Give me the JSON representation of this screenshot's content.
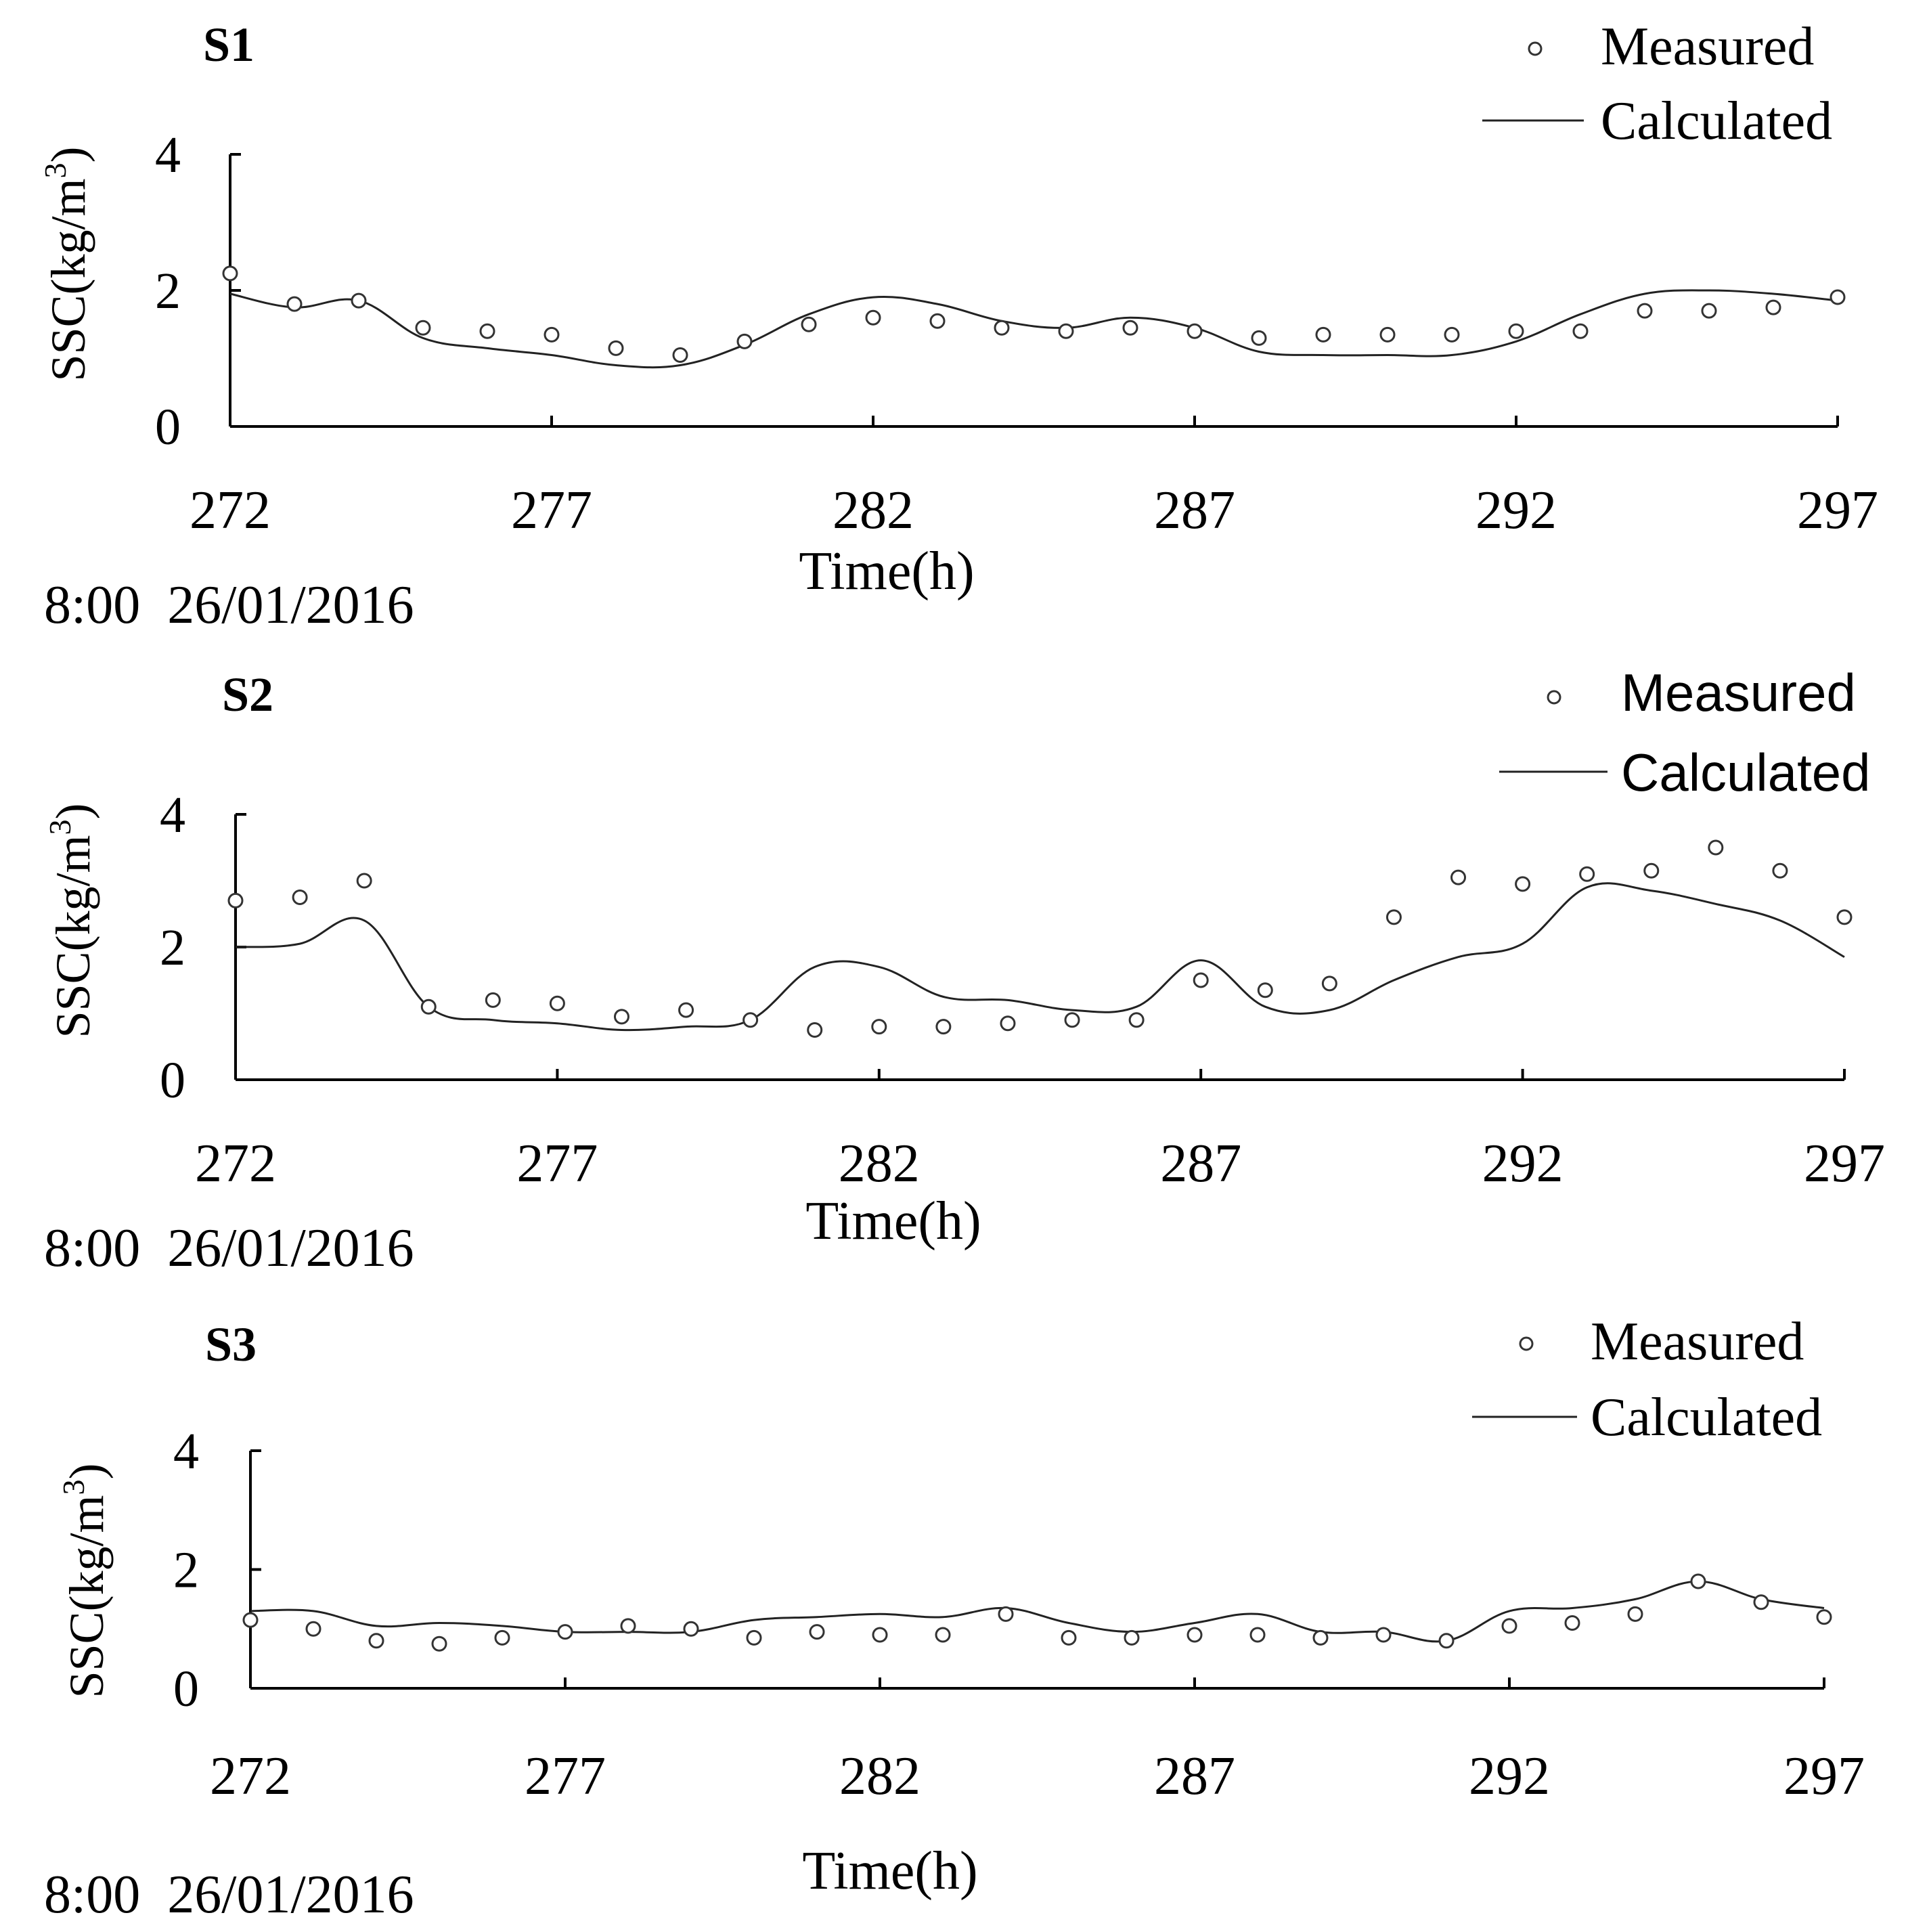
{
  "chart_data": [
    {
      "type": "line",
      "panel_label": "S1",
      "xlabel": "Time(h)",
      "ylabel": "SSC(kg/m3)",
      "ylabel_base": "SSC(kg/m",
      "ylabel_sup": "3",
      "ylabel_close": ")",
      "start_note": "8:00  26/01/2016",
      "xlim": [
        272,
        297
      ],
      "ylim": [
        0,
        4
      ],
      "xticks": [
        272,
        277,
        282,
        287,
        292,
        297
      ],
      "yticks": [
        0,
        2,
        4
      ],
      "legend": {
        "measured": "Measured",
        "calculated": "Calculated"
      },
      "series": [
        {
          "name": "Measured",
          "style": "open-circle",
          "x": [
            272,
            273,
            274,
            275,
            276,
            277,
            278,
            279,
            280,
            281,
            282,
            283,
            284,
            285,
            286,
            287,
            288,
            289,
            290,
            291,
            292,
            293,
            294,
            295,
            296,
            297
          ],
          "y": [
            2.25,
            1.8,
            1.85,
            1.45,
            1.4,
            1.35,
            1.15,
            1.05,
            1.25,
            1.5,
            1.6,
            1.55,
            1.45,
            1.4,
            1.45,
            1.4,
            1.3,
            1.35,
            1.35,
            1.35,
            1.4,
            1.4,
            1.7,
            1.7,
            1.75,
            1.9
          ]
        },
        {
          "name": "Calculated",
          "style": "line",
          "x": [
            272,
            273,
            274,
            275,
            276,
            277,
            278,
            279,
            280,
            281,
            282,
            283,
            284,
            285,
            286,
            287,
            288,
            289,
            290,
            291,
            292,
            293,
            294,
            295,
            296,
            297
          ],
          "y": [
            1.95,
            1.75,
            1.85,
            1.3,
            1.15,
            1.05,
            0.9,
            0.9,
            1.2,
            1.65,
            1.9,
            1.8,
            1.55,
            1.45,
            1.6,
            1.45,
            1.1,
            1.05,
            1.05,
            1.05,
            1.25,
            1.65,
            1.95,
            2.0,
            1.95,
            1.85
          ]
        }
      ]
    },
    {
      "type": "line",
      "panel_label": "S2",
      "xlabel": "Time(h)",
      "ylabel": "SSC(kg/m3)",
      "ylabel_base": "SSC(kg/m",
      "ylabel_sup": "3",
      "ylabel_close": ")",
      "start_note": "8:00  26/01/2016",
      "xlim": [
        272,
        297
      ],
      "ylim": [
        0,
        4
      ],
      "xticks": [
        272,
        277,
        282,
        287,
        292,
        297
      ],
      "yticks": [
        0,
        2,
        4
      ],
      "legend": {
        "measured": "Measured",
        "calculated": "Calculated"
      },
      "series": [
        {
          "name": "Measured",
          "style": "open-circle",
          "x": [
            272,
            273,
            274,
            275,
            276,
            277,
            278,
            279,
            280,
            281,
            282,
            283,
            284,
            285,
            286,
            287,
            288,
            289,
            290,
            291,
            292,
            293,
            294,
            295,
            296,
            297
          ],
          "y": [
            2.7,
            2.75,
            3.0,
            1.1,
            1.2,
            1.15,
            0.95,
            1.05,
            0.9,
            0.75,
            0.8,
            0.8,
            0.85,
            0.9,
            0.9,
            1.5,
            1.35,
            1.45,
            2.45,
            3.05,
            2.95,
            3.1,
            3.15,
            3.5,
            3.15,
            2.45
          ]
        },
        {
          "name": "Calculated",
          "style": "line",
          "x": [
            272,
            273,
            274,
            275,
            276,
            277,
            278,
            279,
            280,
            281,
            282,
            283,
            284,
            285,
            286,
            287,
            288,
            289,
            290,
            291,
            292,
            293,
            294,
            295,
            296,
            297
          ],
          "y": [
            2.0,
            2.05,
            2.4,
            1.1,
            0.9,
            0.85,
            0.75,
            0.8,
            0.9,
            1.7,
            1.7,
            1.25,
            1.2,
            1.05,
            1.1,
            1.8,
            1.1,
            1.05,
            1.5,
            1.85,
            2.05,
            2.9,
            2.85,
            2.65,
            2.4,
            1.85
          ]
        }
      ]
    },
    {
      "type": "line",
      "panel_label": "S3",
      "xlabel": "Time(h)",
      "ylabel": "SSC(kg/m3)",
      "ylabel_base": "SSC(kg/m",
      "ylabel_sup": "3",
      "ylabel_close": ")",
      "start_note": "8:00  26/01/2016",
      "xlim": [
        272,
        297
      ],
      "ylim": [
        0,
        4
      ],
      "xticks": [
        272,
        277,
        282,
        287,
        292,
        297
      ],
      "yticks": [
        0,
        2,
        4
      ],
      "legend": {
        "measured": "Measured",
        "calculated": "Calculated"
      },
      "series": [
        {
          "name": "Measured",
          "style": "open-circle",
          "x": [
            272,
            273,
            274,
            275,
            276,
            277,
            278,
            279,
            280,
            281,
            282,
            283,
            284,
            285,
            286,
            287,
            288,
            289,
            290,
            291,
            292,
            293,
            294,
            295,
            296,
            297
          ],
          "y": [
            1.15,
            1.0,
            0.8,
            0.75,
            0.85,
            0.95,
            1.05,
            1.0,
            0.85,
            0.95,
            0.9,
            0.9,
            1.25,
            0.85,
            0.85,
            0.9,
            0.9,
            0.85,
            0.9,
            0.8,
            1.05,
            1.1,
            1.25,
            1.8,
            1.45,
            1.2
          ]
        },
        {
          "name": "Calculated",
          "style": "line",
          "x": [
            272,
            273,
            274,
            275,
            276,
            277,
            278,
            279,
            280,
            281,
            282,
            283,
            284,
            285,
            286,
            287,
            288,
            289,
            290,
            291,
            292,
            293,
            294,
            295,
            296,
            297
          ],
          "y": [
            1.3,
            1.3,
            1.05,
            1.1,
            1.05,
            0.95,
            0.95,
            0.95,
            1.15,
            1.2,
            1.25,
            1.2,
            1.35,
            1.1,
            0.95,
            1.1,
            1.25,
            0.95,
            0.95,
            0.8,
            1.3,
            1.35,
            1.5,
            1.8,
            1.5,
            1.35
          ]
        }
      ]
    }
  ]
}
